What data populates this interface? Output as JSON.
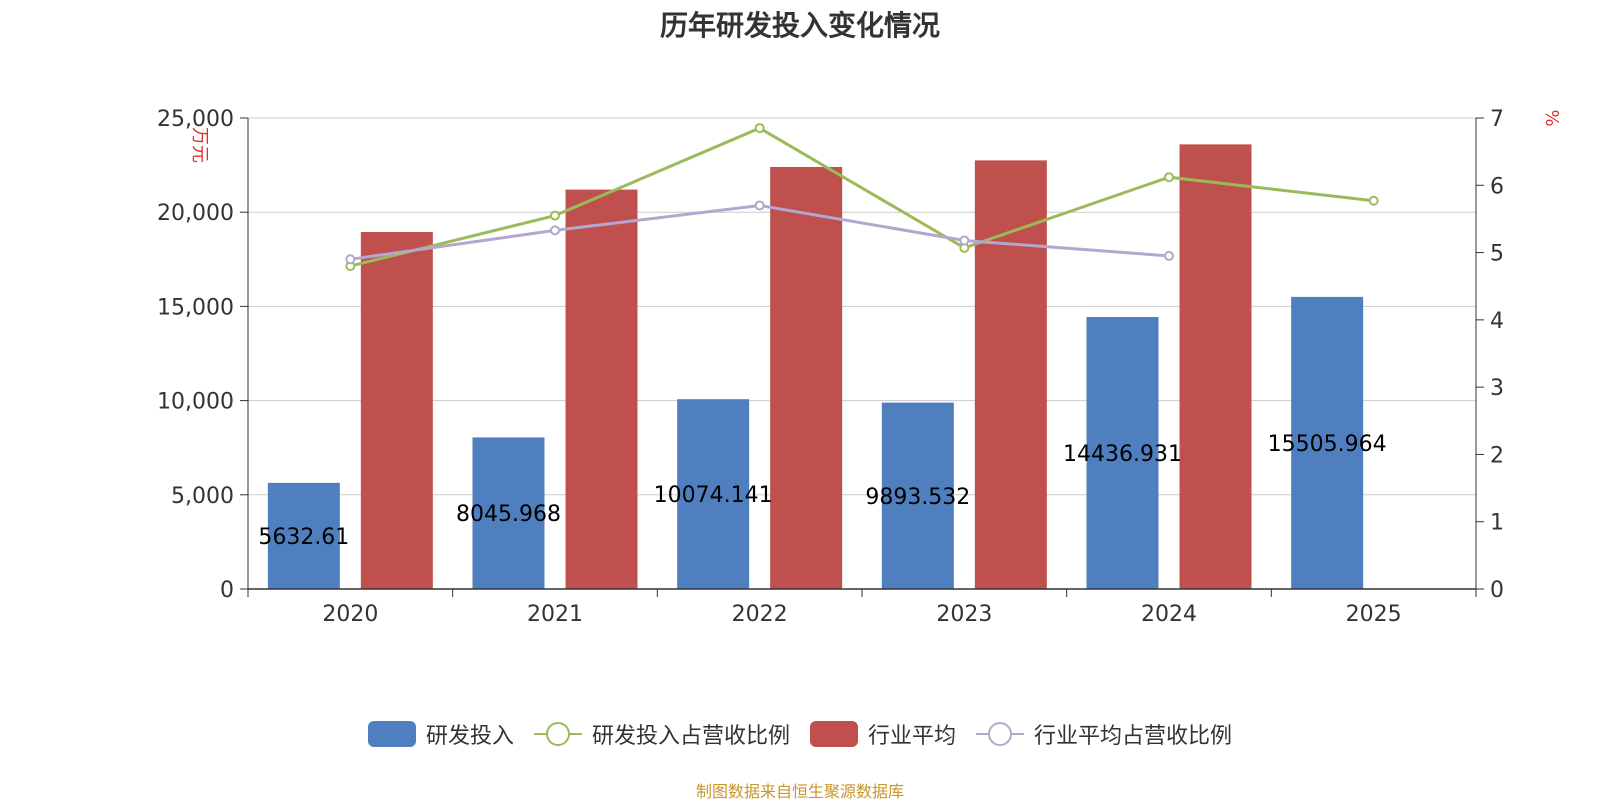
{
  "chart_data": {
    "type": "bar",
    "title": "历年研发投入变化情况",
    "categories": [
      "2020",
      "2021",
      "2022",
      "2023",
      "2024",
      "2025"
    ],
    "y_left": {
      "label": "万元",
      "ticks": [
        "0",
        "5,000",
        "10,000",
        "15,000",
        "20,000",
        "25,000"
      ],
      "range": [
        0,
        25000
      ]
    },
    "y_right": {
      "label": "%",
      "ticks": [
        "0",
        "1",
        "2",
        "3",
        "4",
        "5",
        "6",
        "7"
      ],
      "range": [
        0,
        7
      ]
    },
    "series": [
      {
        "name": "研发投入",
        "type": "bar",
        "axis": "left",
        "color": "#4f7fbe",
        "values": [
          5632.61,
          8045.968,
          10074.141,
          9893.532,
          14436.931,
          15505.964
        ],
        "labels": [
          "5632.61",
          "8045.968",
          "10074.141",
          "9893.532",
          "14436.931",
          "15505.964"
        ]
      },
      {
        "name": "研发投入占营收比例",
        "type": "line",
        "axis": "right",
        "color": "#9bbb59",
        "values": [
          4.8,
          5.55,
          6.85,
          5.07,
          6.12,
          5.77
        ]
      },
      {
        "name": "行业平均",
        "type": "bar",
        "axis": "left",
        "color": "#c0504d",
        "values": [
          18950,
          21200,
          22400,
          22750,
          23600,
          null
        ]
      },
      {
        "name": "行业平均占营收比例",
        "type": "line",
        "axis": "right",
        "color": "#b3a6cf",
        "values": [
          4.9,
          5.33,
          5.7,
          5.18,
          4.95,
          null
        ]
      }
    ],
    "grid": true,
    "legend": "bottom",
    "source": "制图数据来自恒生聚源数据库"
  }
}
